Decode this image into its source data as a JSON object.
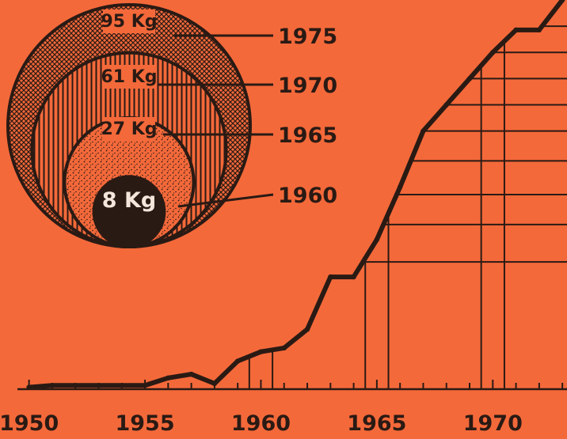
{
  "chart_data": {
    "type": "line",
    "x": [
      1950,
      1951,
      1952,
      1953,
      1954,
      1955,
      1956,
      1957,
      1958,
      1959,
      1960,
      1961,
      1962,
      1963,
      1964,
      1965,
      1966,
      1967,
      1968,
      1969,
      1970,
      1971,
      1972,
      1973
    ],
    "y": [
      0.5,
      1,
      1,
      1,
      1,
      1,
      3,
      4,
      1.5,
      7.5,
      10,
      11,
      16,
      30,
      30,
      40,
      54,
      69,
      76,
      83,
      90,
      96,
      96,
      104
    ],
    "xlim": [
      1949.5,
      1973.2
    ],
    "ylim": [
      0,
      104
    ],
    "x_tick_labels": [
      "1950",
      "1955",
      "1960",
      "1965",
      "1970"
    ],
    "grid": "partial vertical and horizontal guide lines behind the curve",
    "inset": {
      "type": "nested-circles",
      "circles": [
        {
          "label": "95 Kg",
          "year": "1975",
          "value": 95,
          "fill": "crosshatch"
        },
        {
          "label": "61 Kg",
          "year": "1970",
          "value": 61,
          "fill": "vertical-hatch"
        },
        {
          "label": "27 Kg",
          "year": "1965",
          "value": 27,
          "fill": "stipple"
        },
        {
          "label": "8 Kg",
          "year": "1960",
          "value": 8,
          "fill": "solid"
        }
      ]
    }
  },
  "colors": {
    "background": "#F4693A",
    "ink": "#2A1A14",
    "light_text": "#F4E6DA"
  }
}
